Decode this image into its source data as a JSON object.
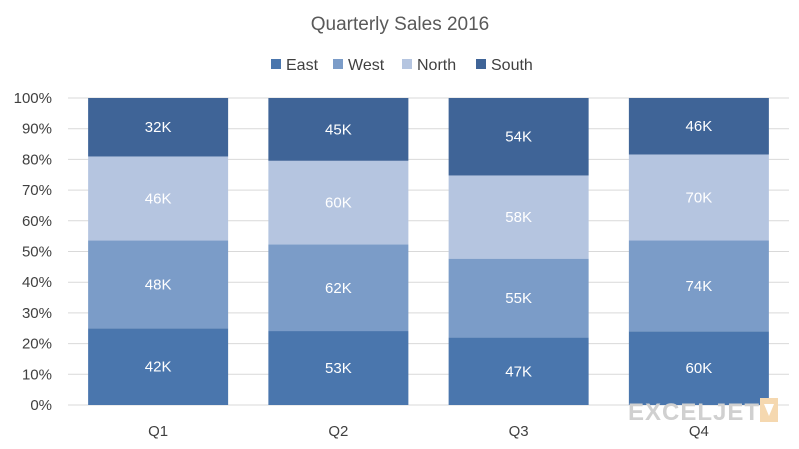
{
  "chart_data": {
    "type": "bar",
    "stacked": "percent",
    "title": "Quarterly Sales 2016",
    "categories": [
      "Q1",
      "Q2",
      "Q3",
      "Q4"
    ],
    "series": [
      {
        "name": "East",
        "values": [
          42,
          53,
          47,
          60
        ],
        "labels": [
          "42K",
          "53K",
          "47K",
          "60K"
        ],
        "color": "#4a76ad",
        "label_color": "#ffffff"
      },
      {
        "name": "West",
        "values": [
          48,
          62,
          55,
          74
        ],
        "labels": [
          "48K",
          "62K",
          "55K",
          "74K"
        ],
        "color": "#7b9cc8",
        "label_color": "#ffffff"
      },
      {
        "name": "North",
        "values": [
          46,
          60,
          58,
          70
        ],
        "labels": [
          "46K",
          "60K",
          "58K",
          "70K"
        ],
        "color": "#b5c5e0",
        "label_color": "#ffffff"
      },
      {
        "name": "South",
        "values": [
          32,
          45,
          54,
          46
        ],
        "labels": [
          "32K",
          "45K",
          "54K",
          "46K"
        ],
        "color": "#3f6497",
        "label_color": "#ffffff"
      }
    ],
    "y_ticks": [
      "0%",
      "10%",
      "20%",
      "30%",
      "40%",
      "50%",
      "60%",
      "70%",
      "80%",
      "90%",
      "100%"
    ],
    "ylim": [
      0,
      100
    ],
    "grid": true,
    "legend_position": "top"
  },
  "watermark": "EXCELJET"
}
